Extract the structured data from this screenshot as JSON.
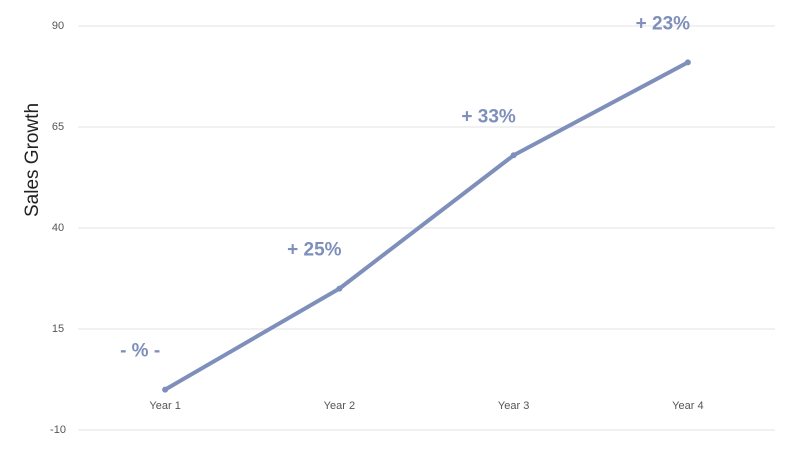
{
  "chart_data": {
    "type": "line",
    "y_label": "Sales Growth",
    "categories": [
      "Year 1",
      "Year 2",
      "Year 3",
      "Year 4"
    ],
    "series": [
      {
        "name": "Sales Growth",
        "color": "#7f8fbb",
        "values": [
          0,
          25,
          58,
          81
        ]
      }
    ],
    "annotations": [
      "- % -",
      "+ 25%",
      "+ 33%",
      "+ 23%"
    ],
    "ylim": [
      -10,
      90
    ],
    "yticks": [
      -10,
      15,
      40,
      65,
      90
    ],
    "grid": true
  }
}
